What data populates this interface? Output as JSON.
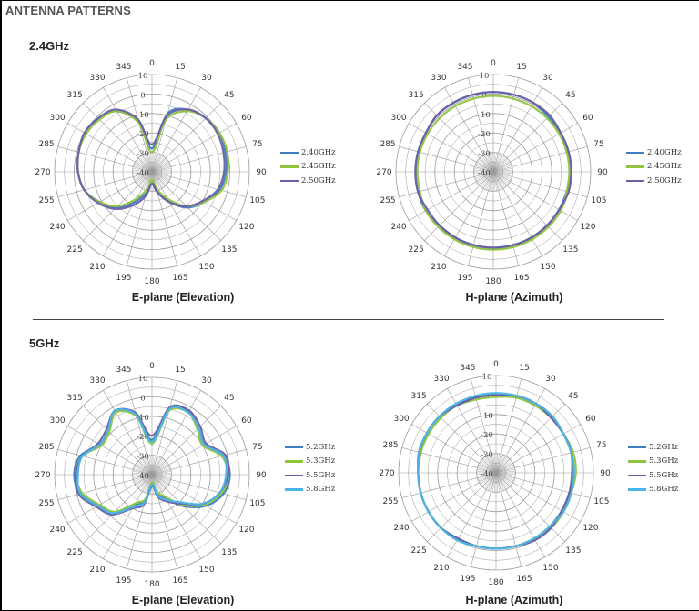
{
  "page": {
    "title": "ANTENNA PATTERNS"
  },
  "bands": [
    {
      "label": "2.4GHz"
    },
    {
      "label": "5GHz"
    }
  ],
  "axis": {
    "angle_labels": [
      "0",
      "15",
      "30",
      "45",
      "60",
      "75",
      "90",
      "105",
      "120",
      "135",
      "150",
      "165",
      "180",
      "195",
      "210",
      "225",
      "240",
      "255",
      "270",
      "285",
      "300",
      "315",
      "330",
      "345"
    ],
    "radial_labels": [
      "10",
      "0",
      "-10",
      "-20",
      "-30",
      "-40"
    ]
  },
  "colors": {
    "blue": "#3f7ec0",
    "green": "#8fc43e",
    "purple": "#6d5ea8",
    "cyan": "#4bb5e8",
    "grid": "#9a9a9a"
  },
  "chart_data": [
    {
      "type": "polar-line",
      "subtitle": "E-plane (Elevation)",
      "band": "2.4GHz",
      "rlim": [
        -40,
        10
      ],
      "theta_deg": [
        0,
        15,
        30,
        45,
        60,
        75,
        90,
        105,
        120,
        135,
        150,
        165,
        180,
        195,
        210,
        225,
        240,
        255,
        270,
        285,
        300,
        315,
        330,
        345
      ],
      "series": [
        {
          "name": "2.40GHz",
          "color": "#3f7ec0",
          "values": [
            -28,
            -9,
            -3,
            -1,
            0,
            -1,
            -2,
            -4,
            -9,
            -14,
            -22,
            -29,
            -34,
            -29,
            -22,
            -14,
            -9,
            -4,
            -2,
            -1,
            0,
            -1,
            -4,
            -13
          ]
        },
        {
          "name": "2.45GHz",
          "color": "#8fc43e",
          "values": [
            -30,
            -12,
            -4,
            -1,
            0,
            0,
            -1,
            -3,
            -9,
            -15,
            -24,
            -31,
            -36,
            -31,
            -24,
            -15,
            -9,
            -4,
            -2,
            -1,
            -1,
            -2,
            -4,
            -14
          ]
        },
        {
          "name": "2.50GHz",
          "color": "#6d5ea8",
          "values": [
            -26,
            -10,
            -3,
            -1,
            -1,
            -2,
            -3,
            -5,
            -10,
            -15,
            -22,
            -29,
            -34,
            -27,
            -20,
            -13,
            -8,
            -4,
            -2,
            -1,
            0,
            -1,
            -3,
            -12
          ]
        }
      ]
    },
    {
      "type": "polar-line",
      "subtitle": "H-plane (Azimuth)",
      "band": "2.4GHz",
      "rlim": [
        -40,
        10
      ],
      "theta_deg": [
        0,
        15,
        30,
        45,
        60,
        75,
        90,
        105,
        120,
        135,
        150,
        165,
        180,
        195,
        210,
        225,
        240,
        255,
        270,
        285,
        300,
        315,
        330,
        345
      ],
      "series": [
        {
          "name": "2.40GHz",
          "color": "#3f7ec0",
          "values": [
            1,
            1,
            1,
            0,
            0,
            0,
            0,
            -1,
            -1,
            -1,
            -1,
            -1,
            -1,
            -1,
            -1,
            -1,
            0,
            0,
            0,
            0,
            0,
            1,
            1,
            1
          ]
        },
        {
          "name": "2.45GHz",
          "color": "#8fc43e",
          "values": [
            -1,
            -1,
            -1,
            -1,
            -1,
            -1,
            -1,
            -1,
            0,
            0,
            0,
            0,
            0,
            0,
            0,
            0,
            0,
            -1,
            -1,
            -1,
            -1,
            -1,
            -1,
            -1
          ]
        },
        {
          "name": "2.50GHz",
          "color": "#6d5ea8",
          "values": [
            1,
            1,
            1,
            1,
            0,
            0,
            0,
            0,
            -1,
            -1,
            -1,
            -1,
            -1,
            -1,
            -1,
            -1,
            -1,
            0,
            0,
            0,
            0,
            1,
            1,
            1
          ]
        }
      ]
    },
    {
      "type": "polar-line",
      "subtitle": "E-plane (Elevation)",
      "band": "5GHz",
      "rlim": [
        -40,
        10
      ],
      "theta_deg": [
        0,
        15,
        30,
        45,
        60,
        75,
        90,
        105,
        120,
        135,
        150,
        165,
        180,
        195,
        210,
        225,
        240,
        255,
        270,
        285,
        300,
        315,
        330,
        345
      ],
      "series": [
        {
          "name": "5.2GHz",
          "color": "#3f7ec0",
          "values": [
            -22,
            -5,
            -2,
            -6,
            -9,
            -2,
            0,
            -2,
            -8,
            -17,
            -26,
            -30,
            -35,
            -26,
            -22,
            -12,
            -8,
            -2,
            0,
            -2,
            -9,
            -8,
            -2,
            -8
          ]
        },
        {
          "name": "5.3GHz",
          "color": "#8fc43e",
          "values": [
            -24,
            -6,
            -3,
            -7,
            -10,
            -3,
            -1,
            -3,
            -9,
            -18,
            -27,
            -31,
            -36,
            -27,
            -23,
            -13,
            -9,
            -3,
            -1,
            -3,
            -10,
            -9,
            -3,
            -9
          ]
        },
        {
          "name": "5.5GHz",
          "color": "#6d5ea8",
          "values": [
            -20,
            -4,
            -2,
            -5,
            -8,
            -1,
            -1,
            -4,
            -10,
            -19,
            -24,
            -28,
            -34,
            -24,
            -20,
            -11,
            -7,
            -1,
            -1,
            -3,
            -8,
            -7,
            -2,
            -7
          ]
        },
        {
          "name": "5.8GHz",
          "color": "#4bb5e8",
          "values": [
            -23,
            -5,
            -3,
            -6,
            -9,
            -2,
            -2,
            -4,
            -10,
            -20,
            -25,
            -29,
            -35,
            -25,
            -21,
            -12,
            -8,
            -2,
            -2,
            -3,
            -9,
            -8,
            -2,
            -8
          ]
        }
      ]
    },
    {
      "type": "polar-line",
      "subtitle": "H-plane (Azimuth)",
      "band": "5GHz",
      "rlim": [
        -40,
        10
      ],
      "theta_deg": [
        0,
        15,
        30,
        45,
        60,
        75,
        90,
        105,
        120,
        135,
        150,
        165,
        180,
        195,
        210,
        225,
        240,
        255,
        270,
        285,
        300,
        315,
        330,
        345
      ],
      "series": [
        {
          "name": "5.2GHz",
          "color": "#3f7ec0",
          "values": [
            0,
            0,
            1,
            1,
            0,
            0,
            0,
            -1,
            -1,
            -1,
            -1,
            -1,
            -1,
            -1,
            -1,
            0,
            0,
            0,
            0,
            0,
            1,
            1,
            1,
            0
          ]
        },
        {
          "name": "5.3GHz",
          "color": "#8fc43e",
          "values": [
            -1,
            0,
            0,
            0,
            0,
            1,
            1,
            0,
            0,
            0,
            -1,
            -1,
            -1,
            -1,
            0,
            0,
            0,
            0,
            0,
            0,
            0,
            0,
            0,
            -1
          ]
        },
        {
          "name": "5.5GHz",
          "color": "#6d5ea8",
          "values": [
            0,
            1,
            1,
            0,
            0,
            0,
            -1,
            -1,
            -1,
            0,
            0,
            -1,
            -1,
            -1,
            -1,
            0,
            0,
            0,
            0,
            1,
            1,
            1,
            0,
            0
          ]
        },
        {
          "name": "5.8GHz",
          "color": "#4bb5e8",
          "values": [
            1,
            1,
            1,
            1,
            0,
            0,
            0,
            0,
            0,
            -1,
            -1,
            -1,
            -1,
            -1,
            0,
            0,
            0,
            0,
            0,
            1,
            1,
            1,
            1,
            1
          ]
        }
      ]
    }
  ]
}
